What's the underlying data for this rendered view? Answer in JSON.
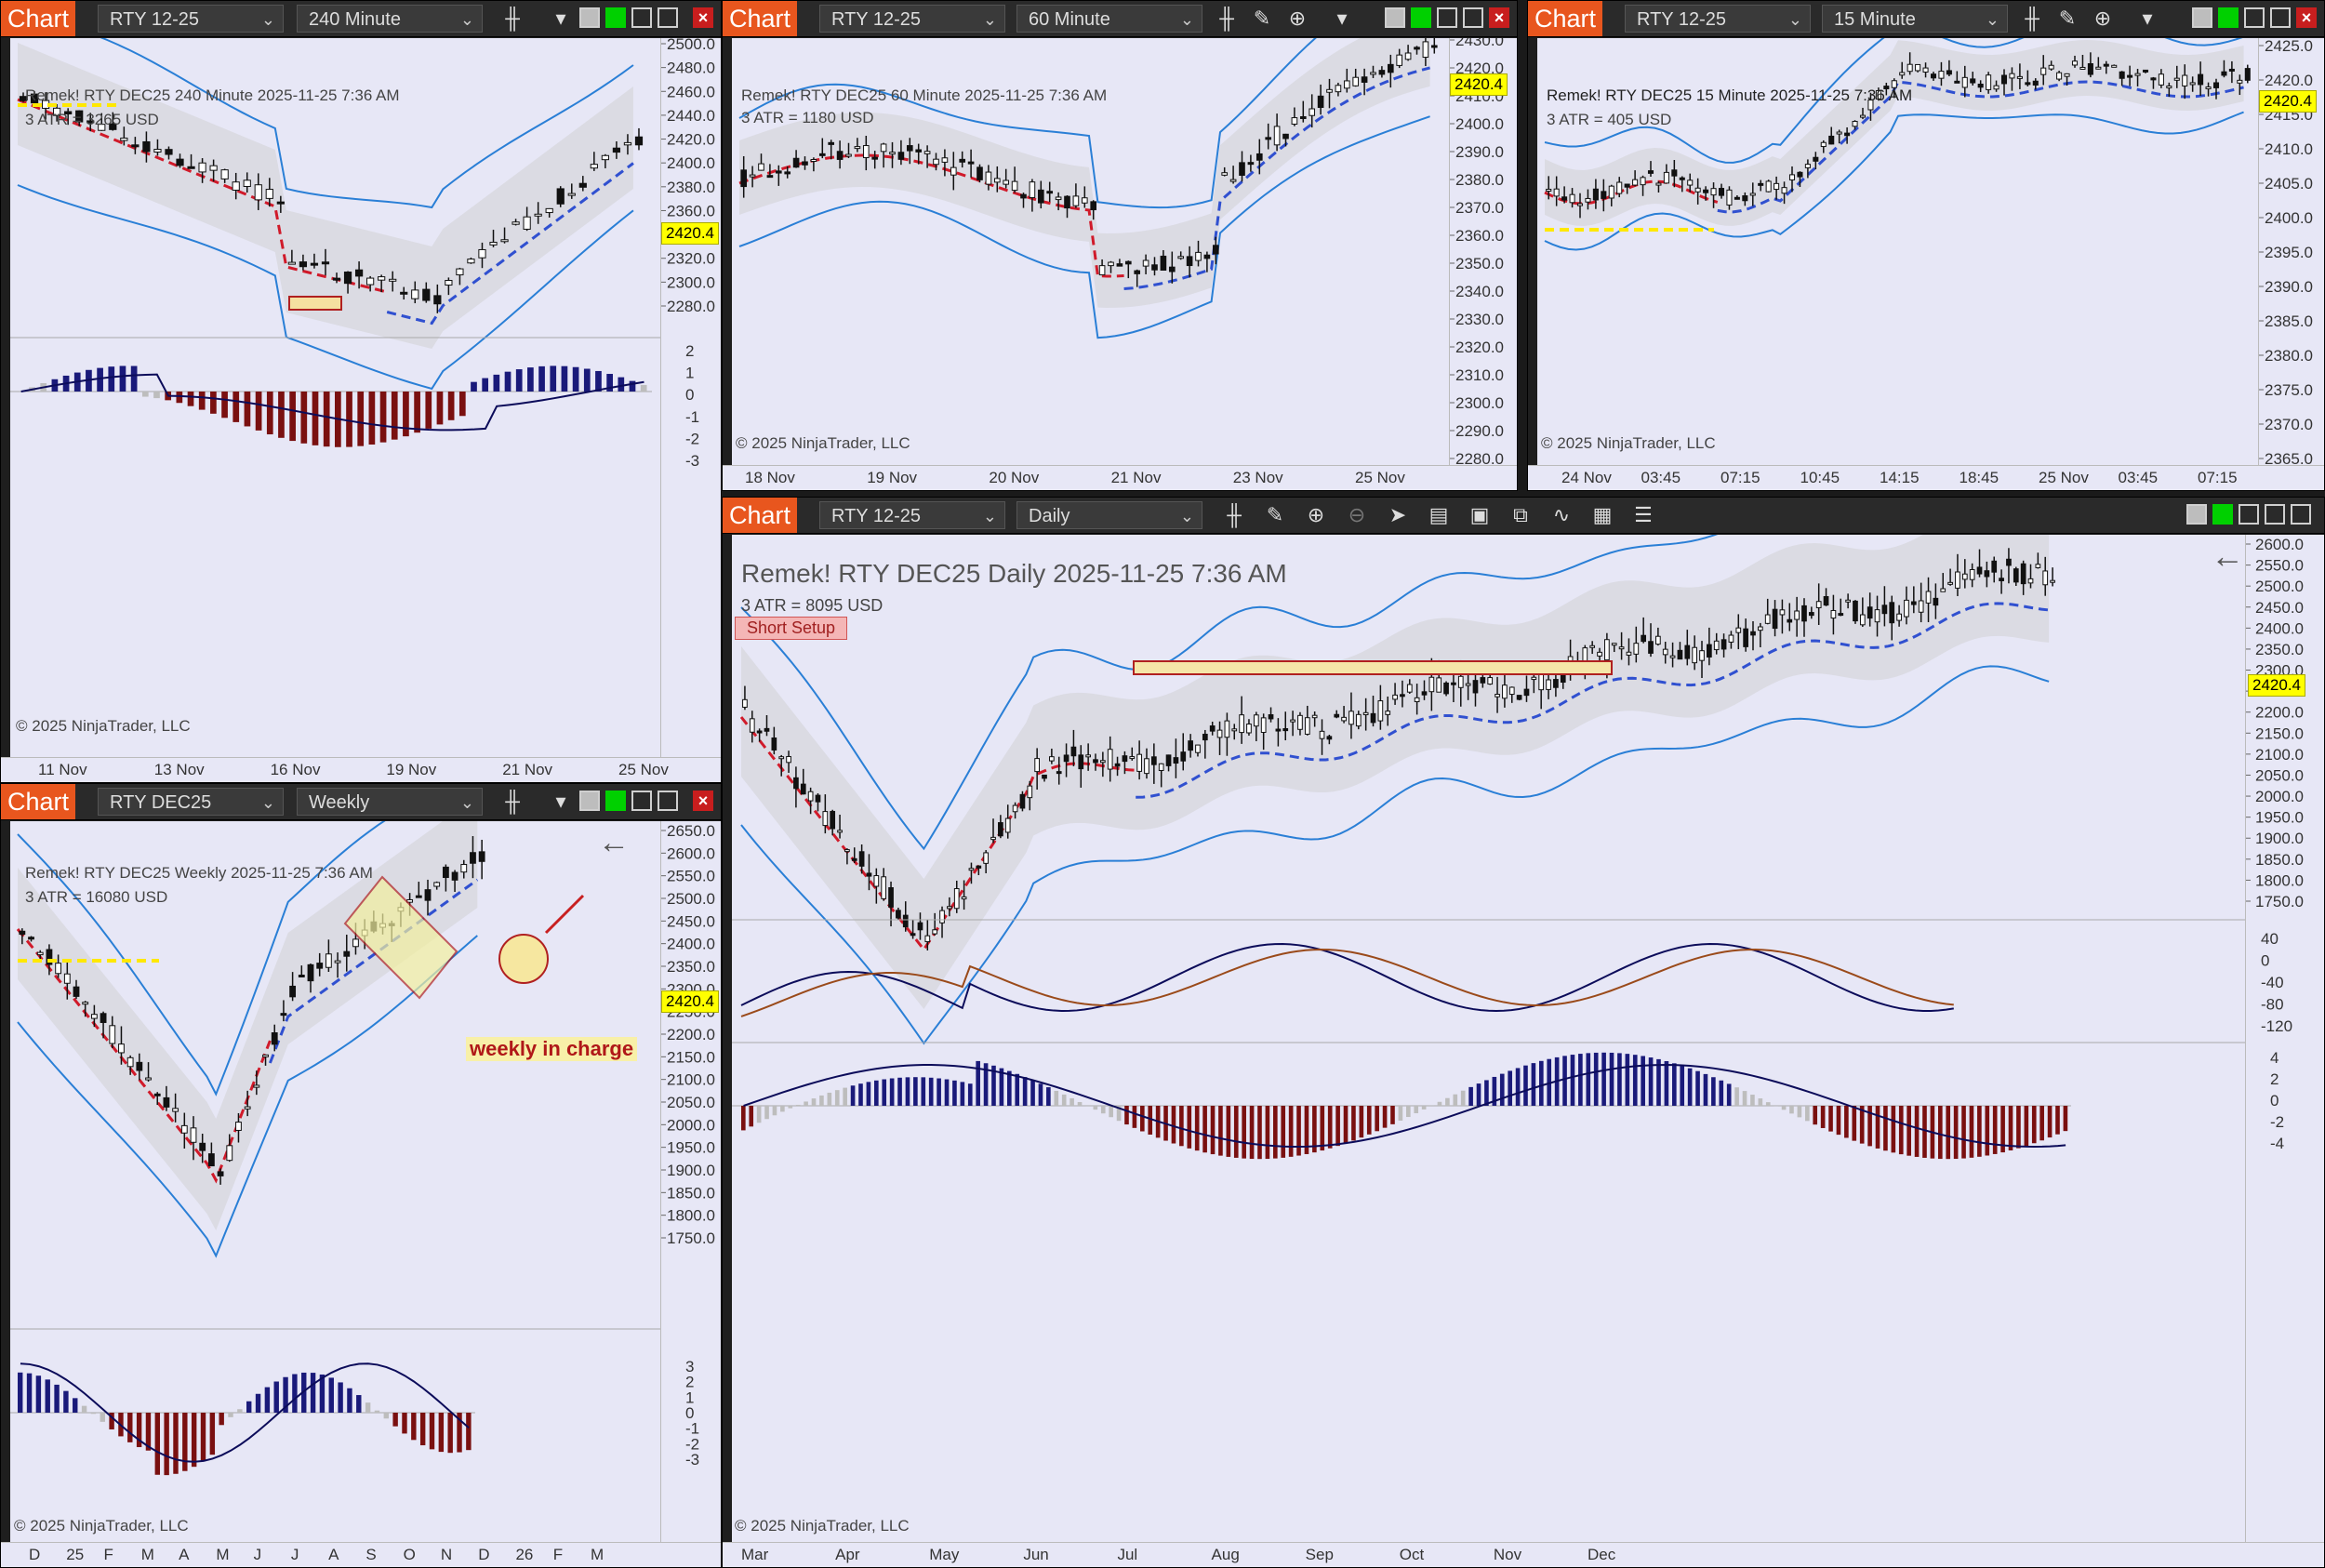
{
  "windows": {
    "w240": {
      "badge": "Chart",
      "instrument": "RTY 12-25",
      "timeframe": "240 Minute",
      "header": "Remek!  RTY DEC25  240 Minute  2025-11-25 7:36 AM",
      "atr": "3 ATR = 3265 USD",
      "copyright": "© 2025 NinjaTrader, LLC",
      "price_tag": "2420.4",
      "y_ticks": [
        "2500.0",
        "2480.0",
        "2460.0",
        "2440.0",
        "2420.0",
        "2400.0",
        "2380.0",
        "2360.0",
        "2340.0",
        "2320.0",
        "2300.0",
        "2280.0"
      ],
      "osc_ticks": [
        "2",
        "1",
        "0",
        "-1",
        "-2",
        "-3"
      ],
      "x_ticks": [
        "11 Nov",
        "13 Nov",
        "16 Nov",
        "19 Nov",
        "21 Nov",
        "25 Nov"
      ]
    },
    "w60": {
      "badge": "Chart",
      "instrument": "RTY 12-25",
      "timeframe": "60 Minute",
      "header": "Remek!  RTY DEC25  60 Minute  2025-11-25 7:36 AM",
      "atr": "3 ATR = 1180 USD",
      "copyright": "© 2025 NinjaTrader, LLC",
      "price_tag": "2420.4",
      "y_ticks": [
        "2430.0",
        "2420.0",
        "2410.0",
        "2400.0",
        "2390.0",
        "2380.0",
        "2370.0",
        "2360.0",
        "2350.0",
        "2340.0",
        "2330.0",
        "2320.0",
        "2310.0",
        "2300.0",
        "2290.0",
        "2280.0"
      ],
      "x_ticks": [
        "18 Nov",
        "19 Nov",
        "20 Nov",
        "21 Nov",
        "23 Nov",
        "25 Nov"
      ]
    },
    "w15": {
      "badge": "Chart",
      "instrument": "RTY 12-25",
      "timeframe": "15 Minute",
      "header": "Remek!  RTY DEC25  15 Minute  2025-11-25 7:36 AM",
      "atr": "3 ATR = 405 USD",
      "copyright": "© 2025 NinjaTrader, LLC",
      "price_tag": "2420.4",
      "y_ticks": [
        "2425.0",
        "2420.0",
        "2415.0",
        "2410.0",
        "2405.0",
        "2400.0",
        "2395.0",
        "2390.0",
        "2385.0",
        "2380.0",
        "2375.0",
        "2370.0",
        "2365.0"
      ],
      "x_ticks": [
        "24 Nov",
        "03:45",
        "07:15",
        "10:45",
        "14:15",
        "18:45",
        "25 Nov",
        "03:45",
        "07:15"
      ]
    },
    "wweekly": {
      "badge": "Chart",
      "instrument": "RTY DEC25",
      "timeframe": "Weekly",
      "header": "Remek!  RTY DEC25  Weekly  2025-11-25 7:36 AM",
      "atr": "3 ATR = 16080 USD",
      "copyright": "© 2025 NinjaTrader, LLC",
      "price_tag": "2420.4",
      "annotation": "weekly in charge",
      "back_arrow": "←",
      "y_ticks": [
        "2650.0",
        "2600.0",
        "2550.0",
        "2500.0",
        "2450.0",
        "2400.0",
        "2350.0",
        "2300.0",
        "2250.0",
        "2200.0",
        "2150.0",
        "2100.0",
        "2050.0",
        "2000.0",
        "1950.0",
        "1900.0",
        "1850.0",
        "1800.0",
        "1750.0"
      ],
      "osc_ticks": [
        "3",
        "2",
        "1",
        "0",
        "-1",
        "-2",
        "-3"
      ],
      "x_ticks": [
        "D",
        "25",
        "F",
        "M",
        "A",
        "M",
        "J",
        "J",
        "A",
        "S",
        "O",
        "N",
        "D",
        "26",
        "F",
        "M"
      ]
    },
    "wdaily": {
      "badge": "Chart",
      "instrument": "RTY 12-25",
      "timeframe": "Daily",
      "header": "Remek!  RTY DEC25  Daily  2025-11-25 7:36 AM",
      "atr": "3 ATR = 8095 USD",
      "setup_label": "Short Setup",
      "copyright": "© 2025 NinjaTrader, LLC",
      "price_tag": "2420.4",
      "back_arrow": "←",
      "y_ticks": [
        "2600.0",
        "2550.0",
        "2500.0",
        "2450.0",
        "2400.0",
        "2350.0",
        "2300.0",
        "2250.0",
        "2200.0",
        "2150.0",
        "2100.0",
        "2050.0",
        "2000.0",
        "1950.0",
        "1900.0",
        "1850.0",
        "1800.0",
        "1750.0"
      ],
      "osc1_ticks": [
        "40",
        "0",
        "-40",
        "-80",
        "-120"
      ],
      "osc2_ticks": [
        "4",
        "2",
        "0",
        "-2",
        "-4"
      ],
      "x_ticks": [
        "Mar",
        "Apr",
        "May",
        "Jun",
        "Jul",
        "Aug",
        "Sep",
        "Oct",
        "Nov",
        "Dec"
      ]
    }
  },
  "colors": {
    "badge": "#e8561e",
    "plot_bg": "#e7e7f6",
    "upper_band": "#2a7fd6",
    "red_trend": "#d01a2a",
    "blue_trend": "#3050d0",
    "yellow_level": "#ffe800",
    "hist_pos": "#1a1a7a",
    "hist_neg": "#7a1010",
    "hist_neutral": "#bdbdbd"
  }
}
